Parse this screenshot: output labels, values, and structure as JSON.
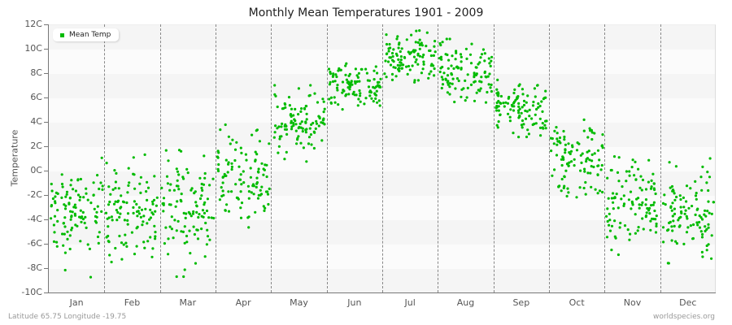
{
  "chart_data": {
    "type": "scatter",
    "title": "Monthly Mean Temperatures 1901 - 2009",
    "xlabel": "",
    "ylabel": "Temperature",
    "categories": [
      "Jan",
      "Feb",
      "Mar",
      "Apr",
      "May",
      "Jun",
      "Jul",
      "Aug",
      "Sep",
      "Oct",
      "Nov",
      "Dec"
    ],
    "yticks": [
      "12C",
      "10C",
      "8C",
      "6C",
      "4C",
      "2C",
      "0C",
      "-2C",
      "-4C",
      "-6C",
      "-8C",
      "-10C"
    ],
    "ylim": [
      -10,
      12
    ],
    "grid": "alternating horizontal bands, dashed vertical month separators",
    "legend": {
      "position": "top-left",
      "entries": [
        "Mean Temp"
      ]
    },
    "series": [
      {
        "name": "Mean Temp",
        "color": "#00bb00",
        "points_per_month": 109,
        "monthly_summary": [
          {
            "month": "Jan",
            "mean": -3.5,
            "min": -9.0,
            "max": 1.3
          },
          {
            "month": "Feb",
            "mean": -3.5,
            "min": -7.5,
            "max": 2.6
          },
          {
            "month": "Mar",
            "mean": -3.0,
            "min": -8.7,
            "max": 3.0
          },
          {
            "month": "Apr",
            "mean": -0.5,
            "min": -5.3,
            "max": 4.1
          },
          {
            "month": "May",
            "mean": 3.6,
            "min": -0.5,
            "max": 7.0
          },
          {
            "month": "Jun",
            "mean": 7.0,
            "min": 4.3,
            "max": 9.2
          },
          {
            "month": "Jul",
            "mean": 9.2,
            "min": 6.4,
            "max": 11.5
          },
          {
            "month": "Aug",
            "mean": 8.2,
            "min": 5.4,
            "max": 10.8
          },
          {
            "month": "Sep",
            "mean": 5.0,
            "min": 2.6,
            "max": 8.4
          },
          {
            "month": "Oct",
            "mean": 1.0,
            "min": -3.6,
            "max": 5.2
          },
          {
            "month": "Nov",
            "mean": -2.5,
            "min": -6.9,
            "max": 1.7
          },
          {
            "month": "Dec",
            "mean": -3.5,
            "min": -7.9,
            "max": 1.7
          }
        ]
      }
    ]
  },
  "footer": {
    "location": "Latitude 65.75 Longitude -19.75",
    "source": "worldspecies.org"
  }
}
